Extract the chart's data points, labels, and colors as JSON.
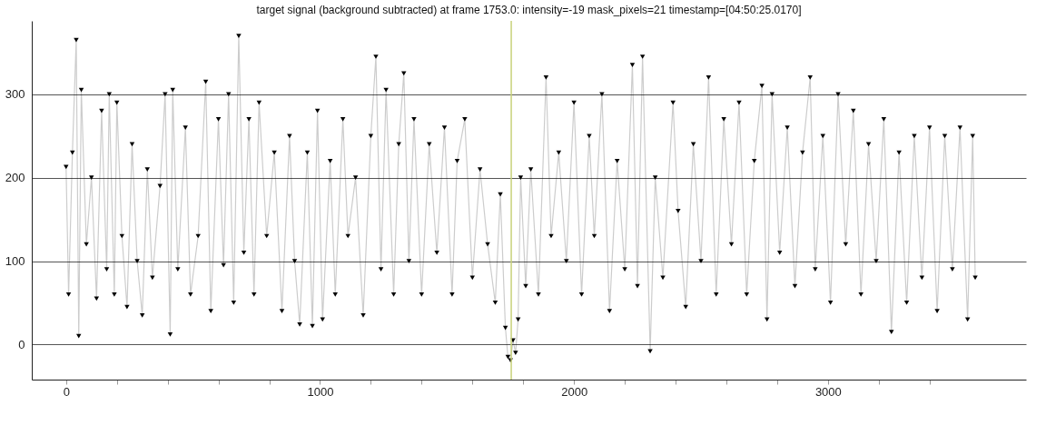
{
  "chart_data": {
    "type": "line",
    "title": "target signal (background subtracted) at frame 1753.0: intensity=-19 mask_pixels=21 timestamp=[04:50:25.0170]",
    "series": [
      {
        "color": "#000000",
        "x": [
          0,
          10,
          25,
          40,
          50,
          60,
          80,
          100,
          120,
          140,
          160,
          170,
          190,
          200,
          220,
          240,
          260,
          280,
          300,
          320,
          340,
          370,
          390,
          410,
          420,
          440,
          470,
          490,
          520,
          550,
          570,
          600,
          620,
          640,
          660,
          680,
          700,
          720,
          740,
          760,
          790,
          820,
          850,
          880,
          900,
          920,
          950,
          970,
          990,
          1010,
          1040,
          1060,
          1090,
          1110,
          1140,
          1170,
          1200,
          1220,
          1240,
          1260,
          1290,
          1310,
          1330,
          1350,
          1370,
          1400,
          1430,
          1460,
          1490,
          1520,
          1540,
          1570,
          1600,
          1630,
          1660,
          1690,
          1710,
          1730,
          1740,
          1750,
          1760,
          1770,
          1780,
          1790,
          1810,
          1830,
          1860,
          1890,
          1910,
          1940,
          1970,
          2000,
          2030,
          2060,
          2080,
          2110,
          2140,
          2170,
          2200,
          2230,
          2250,
          2270,
          2300,
          2320,
          2350,
          2390,
          2410,
          2440,
          2470,
          2500,
          2530,
          2560,
          2590,
          2620,
          2650,
          2680,
          2710,
          2740,
          2760,
          2780,
          2810,
          2840,
          2870,
          2900,
          2930,
          2950,
          2980,
          3010,
          3040,
          3070,
          3100,
          3130,
          3160,
          3190,
          3220,
          3250,
          3280,
          3310,
          3340,
          3370,
          3400,
          3430,
          3460,
          3490,
          3520,
          3550,
          3570,
          3580
        ],
        "values": [
          213,
          60,
          230,
          365,
          10,
          305,
          120,
          200,
          55,
          280,
          90,
          300,
          60,
          290,
          130,
          45,
          240,
          100,
          35,
          210,
          80,
          190,
          300,
          12,
          305,
          90,
          260,
          60,
          130,
          315,
          40,
          270,
          95,
          300,
          50,
          370,
          110,
          270,
          60,
          290,
          130,
          230,
          40,
          250,
          100,
          24,
          230,
          22,
          280,
          30,
          220,
          60,
          270,
          130,
          200,
          35,
          250,
          345,
          90,
          305,
          60,
          240,
          325,
          100,
          270,
          60,
          240,
          110,
          260,
          60,
          220,
          270,
          80,
          210,
          120,
          50,
          180,
          20,
          -15,
          -19,
          5,
          -10,
          30,
          200,
          70,
          210,
          60,
          320,
          130,
          230,
          100,
          290,
          60,
          250,
          130,
          300,
          40,
          220,
          90,
          335,
          70,
          345,
          -8,
          200,
          80,
          290,
          160,
          45,
          240,
          100,
          320,
          60,
          270,
          120,
          290,
          60,
          220,
          310,
          30,
          300,
          110,
          260,
          70,
          230,
          320,
          90,
          250,
          50,
          300,
          120,
          280,
          60,
          240,
          100,
          270,
          15,
          230,
          50,
          250,
          80,
          260,
          40,
          250,
          90,
          260,
          30,
          250,
          80
        ]
      }
    ],
    "xlim": [
      -135,
      3780
    ],
    "ylim": [
      -42,
      388
    ],
    "xticks": [
      0,
      {
        "value": 200,
        "label": null
      },
      {
        "value": 400,
        "label": null
      },
      {
        "value": 600,
        "label": null
      },
      {
        "value": 800,
        "label": null
      },
      1000,
      {
        "value": 1200,
        "label": null
      },
      {
        "value": 1400,
        "label": null
      },
      {
        "value": 1600,
        "label": null
      },
      {
        "value": 1800,
        "label": null
      },
      2000,
      {
        "value": 2200,
        "label": null
      },
      {
        "value": 2400,
        "label": null
      },
      {
        "value": 2600,
        "label": null
      },
      {
        "value": 2800,
        "label": null
      },
      3000,
      {
        "value": 3200,
        "label": null
      },
      {
        "value": 3400,
        "label": null
      }
    ],
    "yticks": [
      0,
      100,
      200,
      300
    ],
    "grid": "y",
    "marker": "triangle",
    "line_style": "solid",
    "ref_lines": [
      {
        "axis": "x",
        "value": 1753,
        "color": "#c8d27a"
      }
    ]
  }
}
